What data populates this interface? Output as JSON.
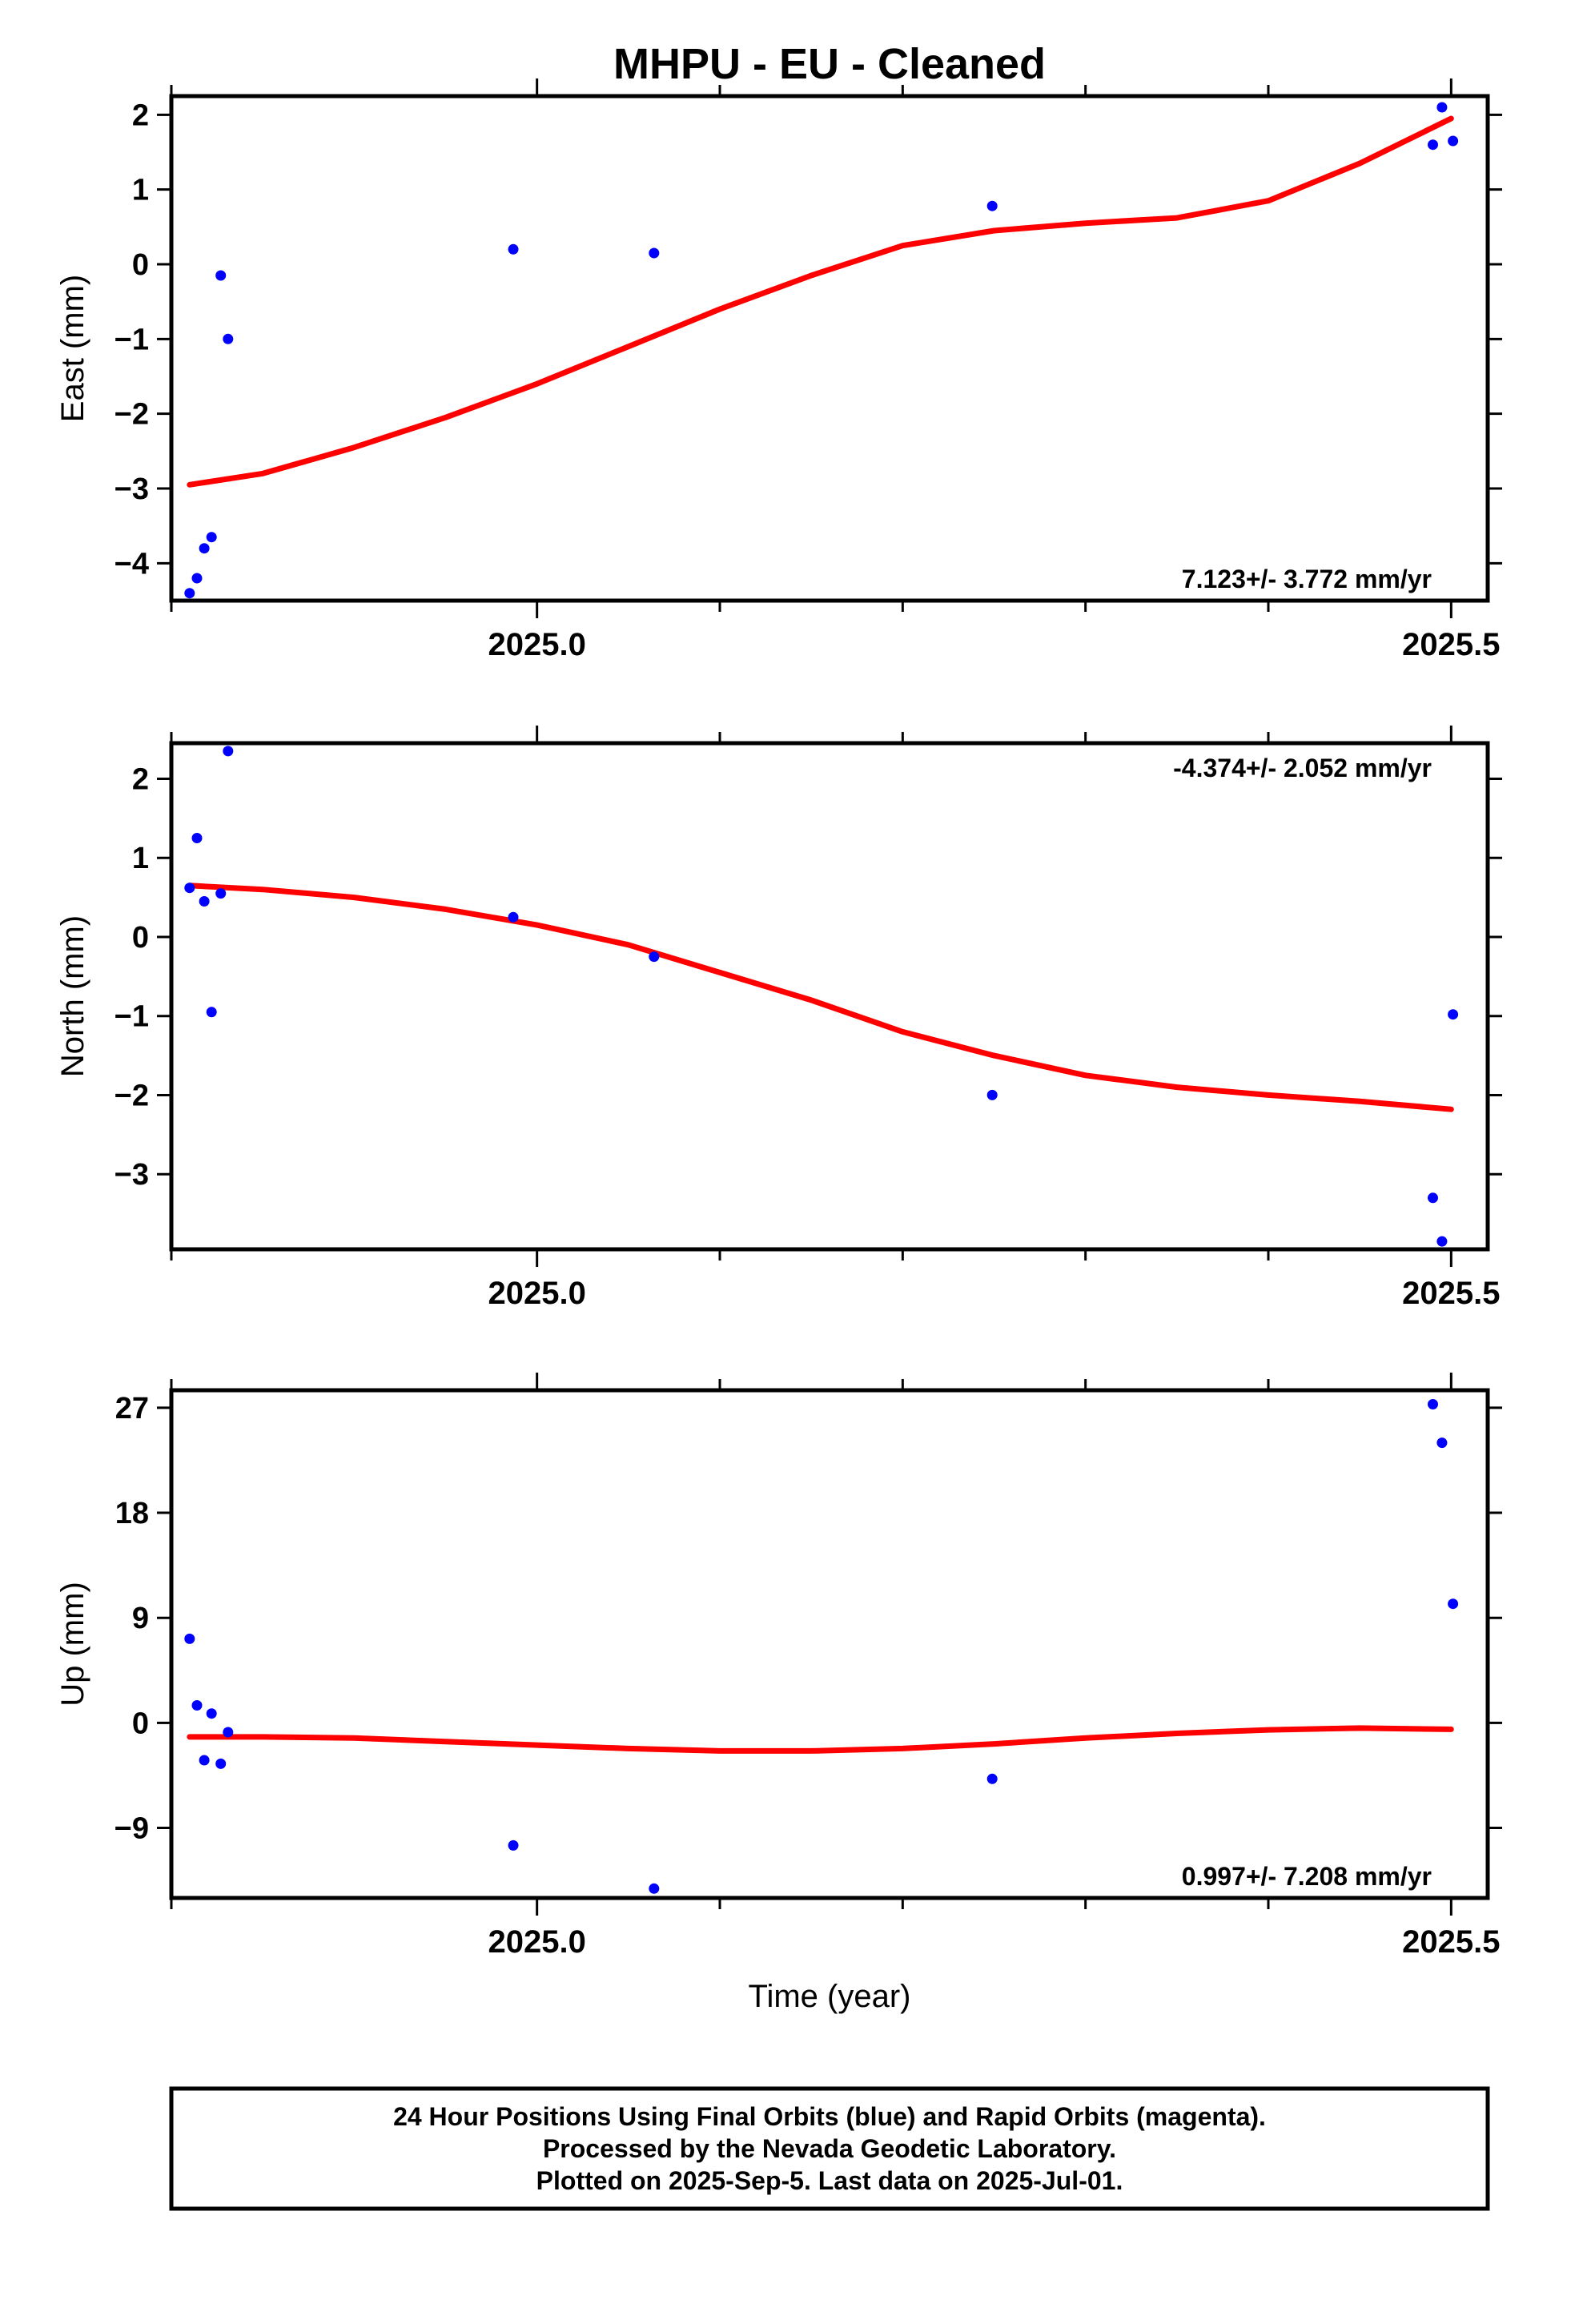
{
  "title": "MHPU  - EU - Cleaned",
  "colors": {
    "points": "#0000ff",
    "fit": "#ff0000",
    "frame": "#000000"
  },
  "chart_data": [
    {
      "type": "scatter",
      "panel": "east",
      "ylabel": "East (mm)",
      "xlabel": "",
      "xlim": [
        2024.8,
        2025.52
      ],
      "ylim": [
        -4.5,
        2.25
      ],
      "yticks": [
        -4,
        -3,
        -2,
        -1,
        0,
        1,
        2
      ],
      "ytick_labels": [
        "−4",
        "−3",
        "−2",
        "−1",
        "0",
        "1",
        "2"
      ],
      "xticks": [
        2025.0,
        2025.5
      ],
      "xtick_labels": [
        "2025.0",
        "2025.5"
      ],
      "minor_xticks": [
        2024.8,
        2025.1,
        2025.2,
        2025.3,
        2025.4
      ],
      "rate_label": "7.123+/- 3.772 mm/yr",
      "rate_position": "bottom-right",
      "series": [
        {
          "name": "",
          "x": [
            2024.81,
            2024.814,
            2024.818,
            2024.822,
            2024.827,
            2024.831,
            2024.987,
            2025.064,
            2025.249,
            2025.49,
            2025.495,
            2025.501
          ],
          "y": [
            -4.4,
            -4.2,
            -3.8,
            -3.65,
            -0.15,
            -1.0,
            0.2,
            0.15,
            0.78,
            1.6,
            2.1,
            1.65
          ]
        }
      ],
      "fit": {
        "x": [
          2024.81,
          2024.85,
          2024.9,
          2024.95,
          2025.0,
          2025.05,
          2025.1,
          2025.15,
          2025.2,
          2025.25,
          2025.3,
          2025.35,
          2025.4,
          2025.45,
          2025.5
        ],
        "y": [
          -2.95,
          -2.8,
          -2.45,
          -2.05,
          -1.6,
          -1.1,
          -0.6,
          -0.15,
          0.25,
          0.45,
          0.55,
          0.62,
          0.85,
          1.35,
          1.95
        ]
      }
    },
    {
      "type": "scatter",
      "panel": "north",
      "ylabel": "North (mm)",
      "xlabel": "",
      "xlim": [
        2024.8,
        2025.52
      ],
      "ylim": [
        -3.95,
        2.45
      ],
      "yticks": [
        -3,
        -2,
        -1,
        0,
        1,
        2
      ],
      "ytick_labels": [
        "−3",
        "−2",
        "−1",
        "0",
        "1",
        "2"
      ],
      "xticks": [
        2025.0,
        2025.5
      ],
      "xtick_labels": [
        "2025.0",
        "2025.5"
      ],
      "minor_xticks": [
        2024.8,
        2025.1,
        2025.2,
        2025.3,
        2025.4
      ],
      "rate_label": "-4.374+/- 2.052 mm/yr",
      "rate_position": "top-right",
      "series": [
        {
          "name": "",
          "x": [
            2024.81,
            2024.814,
            2024.818,
            2024.822,
            2024.827,
            2024.831,
            2024.987,
            2025.064,
            2025.249,
            2025.49,
            2025.495,
            2025.501
          ],
          "y": [
            0.62,
            1.25,
            0.45,
            -0.95,
            0.55,
            2.35,
            0.25,
            -0.25,
            -2.0,
            -3.3,
            -3.85,
            -0.98
          ]
        }
      ],
      "fit": {
        "x": [
          2024.81,
          2024.85,
          2024.9,
          2024.95,
          2025.0,
          2025.05,
          2025.1,
          2025.15,
          2025.2,
          2025.25,
          2025.3,
          2025.35,
          2025.4,
          2025.45,
          2025.5
        ],
        "y": [
          0.65,
          0.6,
          0.5,
          0.35,
          0.15,
          -0.1,
          -0.45,
          -0.8,
          -1.2,
          -1.5,
          -1.75,
          -1.9,
          -2.0,
          -2.08,
          -2.18
        ]
      }
    },
    {
      "type": "scatter",
      "panel": "up",
      "ylabel": "Up (mm)",
      "xlabel": "Time (year)",
      "xlim": [
        2024.8,
        2025.52
      ],
      "ylim": [
        -15,
        28.5
      ],
      "yticks": [
        -9,
        0,
        9,
        18,
        27
      ],
      "ytick_labels": [
        "−9",
        "0",
        "9",
        "18",
        "27"
      ],
      "xticks": [
        2025.0,
        2025.5
      ],
      "xtick_labels": [
        "2025.0",
        "2025.5"
      ],
      "minor_xticks": [
        2024.8,
        2025.1,
        2025.2,
        2025.3,
        2025.4
      ],
      "rate_label": "0.997+/- 7.208 mm/yr",
      "rate_position": "bottom-right",
      "series": [
        {
          "name": "",
          "x": [
            2024.81,
            2024.814,
            2024.818,
            2024.822,
            2024.827,
            2024.831,
            2024.987,
            2025.064,
            2025.249,
            2025.49,
            2025.495,
            2025.501
          ],
          "y": [
            7.2,
            1.5,
            -3.2,
            0.8,
            -3.5,
            -0.8,
            -10.5,
            -14.2,
            -4.8,
            27.3,
            24.0,
            10.2
          ]
        }
      ],
      "fit": {
        "x": [
          2024.81,
          2024.85,
          2024.9,
          2024.95,
          2025.0,
          2025.05,
          2025.1,
          2025.15,
          2025.2,
          2025.25,
          2025.3,
          2025.35,
          2025.4,
          2025.45,
          2025.5
        ],
        "y": [
          -1.2,
          -1.2,
          -1.3,
          -1.6,
          -1.9,
          -2.2,
          -2.4,
          -2.4,
          -2.2,
          -1.8,
          -1.3,
          -0.9,
          -0.6,
          -0.45,
          -0.55
        ]
      }
    }
  ],
  "footer": {
    "line1": "24 Hour Positions Using Final Orbits (blue) and Rapid Orbits (magenta).",
    "line2": "Processed by the Nevada Geodetic Laboratory.",
    "line3": "Plotted on 2025-Sep-5. Last data on 2025-Jul-01."
  }
}
